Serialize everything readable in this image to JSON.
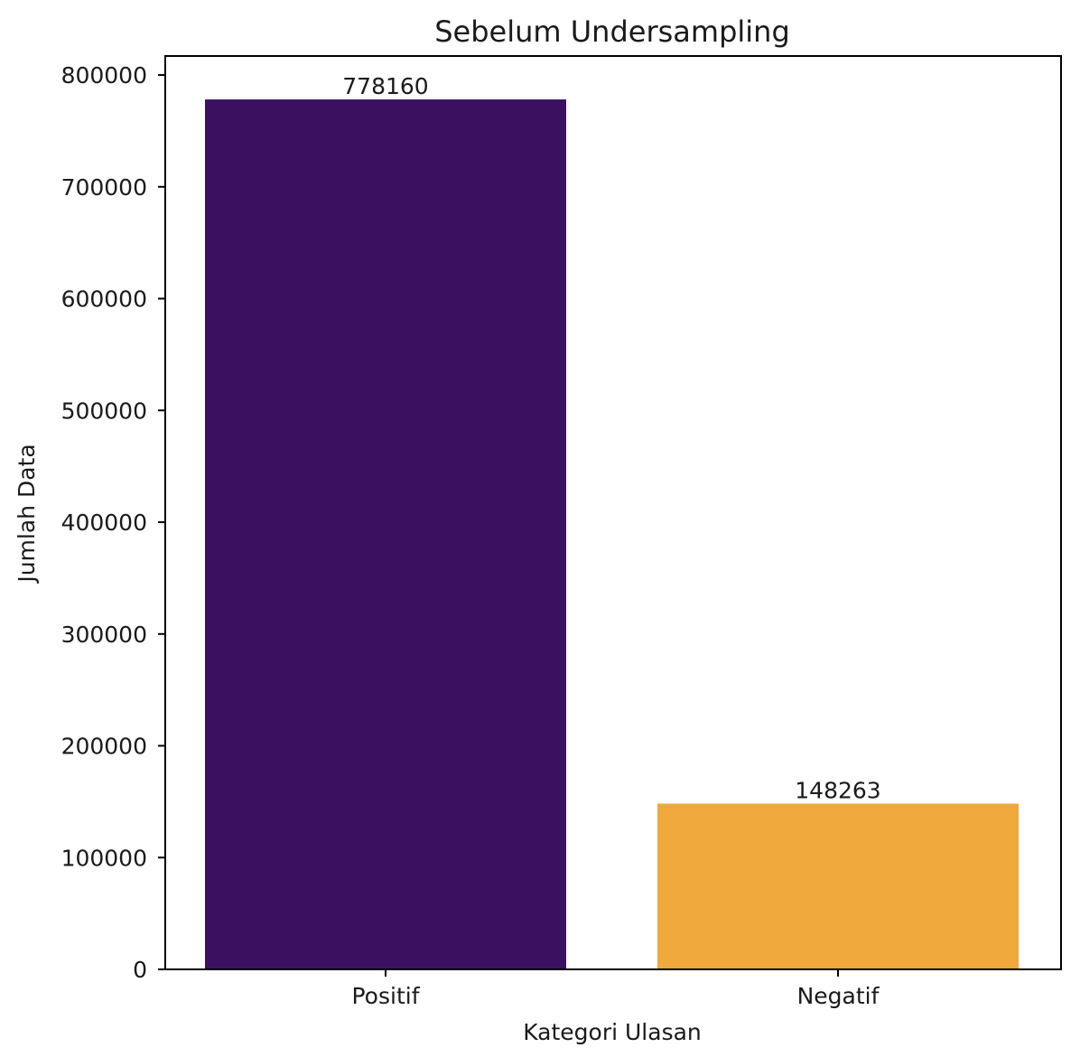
{
  "chart_data": {
    "type": "bar",
    "title": "Sebelum Undersampling",
    "xlabel": "Kategori Ulasan",
    "ylabel": "Jumlah Data",
    "categories": [
      "Positif",
      "Negatif"
    ],
    "values": [
      778160,
      148263
    ],
    "data_labels": [
      "778160",
      "148263"
    ],
    "colors": [
      "#3c1060",
      "#eea83c"
    ],
    "ylim": [
      0,
      817000
    ],
    "yticks": [
      0,
      100000,
      200000,
      300000,
      400000,
      500000,
      600000,
      700000,
      800000
    ],
    "ytick_labels": [
      "0",
      "100000",
      "200000",
      "300000",
      "400000",
      "500000",
      "600000",
      "700000",
      "800000"
    ],
    "grid": false,
    "legend": "none"
  }
}
